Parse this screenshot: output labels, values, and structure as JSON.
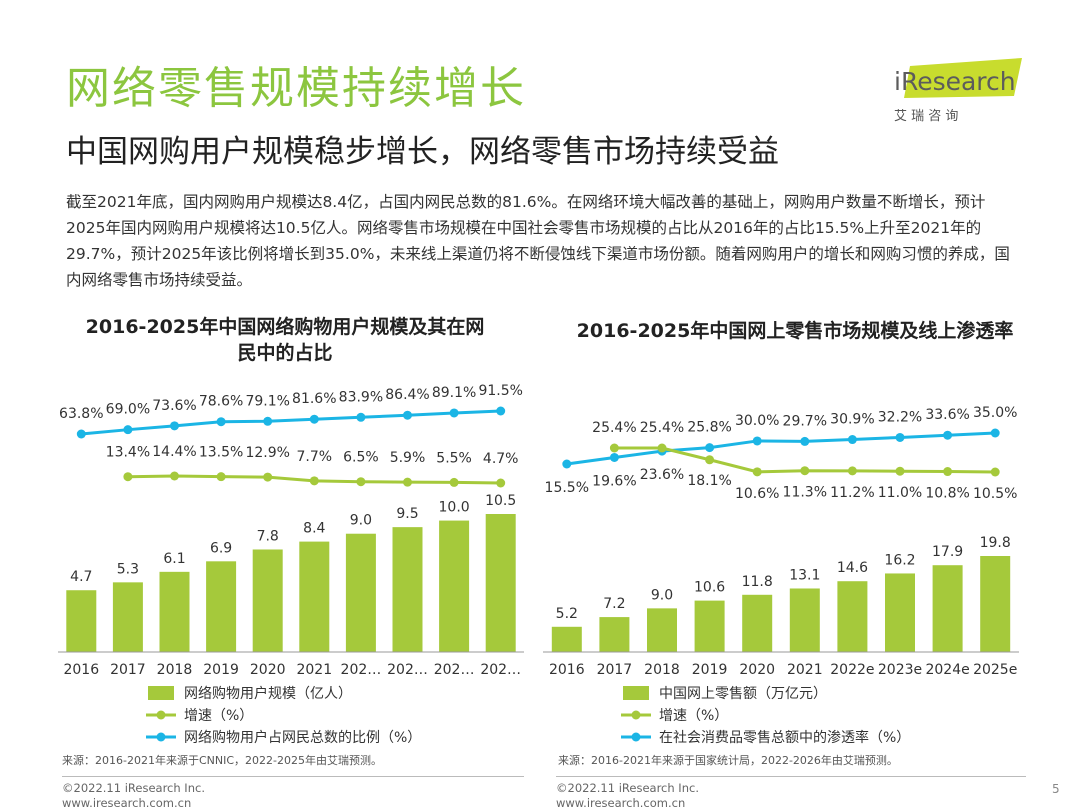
{
  "header": {
    "title": "网络零售规模持续增长",
    "subtitle": "中国网购用户规模稳步增长，网络零售市场持续受益",
    "logo_text": "iResearch",
    "logo_sub": "艾 瑞 咨 询"
  },
  "body_text": "截至2021年底，国内网购用户规模达8.4亿，占国内网民总数的81.6%。在网络环境大幅改善的基础上，网购用户数量不断增长，预计2025年国内网购用户规模将达10.5亿人。网络零售市场规模在中国社会零售市场规模的占比从2016年的占比15.5%上升至2021年的29.7%，预计2025年该比例将增长到35.0%，未来线上渠道仍将不断侵蚀线下渠道市场份额。随着网购用户的增长和网购习惯的养成，国内网络零售市场持续受益。",
  "colors": {
    "accent": "#8CC63F",
    "bar": "#A5C93B",
    "line_growth": "#A5C93B",
    "line_ratio": "#1BB5E5"
  },
  "chart_data": [
    {
      "type": "bar",
      "title": "2016-2025年中国网络购物用户规模及其在网民中的占比",
      "title_line1": "2016-2025年中国网络购物用户规模及其在网",
      "title_line2": "民中的占比",
      "categories": [
        "2016",
        "2017",
        "2018",
        "2019",
        "2020",
        "2021",
        "202…",
        "202…",
        "202…",
        "202…"
      ],
      "series": [
        {
          "name": "网络购物用户规模（亿人）",
          "type": "bar",
          "values": [
            4.7,
            5.3,
            6.1,
            6.9,
            7.8,
            8.4,
            9.0,
            9.5,
            10.0,
            10.5
          ],
          "labels": [
            "4.7",
            "5.3",
            "6.1",
            "6.9",
            "7.8",
            "8.4",
            "9.0",
            "9.5",
            "10.0",
            "10.5"
          ]
        },
        {
          "name": "增速（%）",
          "type": "line",
          "values": [
            null,
            13.4,
            14.4,
            13.5,
            12.9,
            7.7,
            6.5,
            5.9,
            5.5,
            4.7
          ],
          "labels": [
            "",
            "13.4%",
            "14.4%",
            "13.5%",
            "12.9%",
            "7.7%",
            "6.5%",
            "5.9%",
            "5.5%",
            "4.7%"
          ]
        },
        {
          "name": "网络购物用户占网民总数的比例（%）",
          "type": "line",
          "values": [
            63.8,
            69.0,
            73.6,
            78.6,
            79.1,
            81.6,
            83.9,
            86.4,
            89.1,
            91.5
          ],
          "labels": [
            "63.8%",
            "69.0%",
            "73.6%",
            "78.6%",
            "79.1%",
            "81.6%",
            "83.9%",
            "86.4%",
            "89.1%",
            "91.5%"
          ]
        }
      ],
      "source": "来源：2016-2021年来源于CNNIC，2022-2025年由艾瑞预测。"
    },
    {
      "type": "bar",
      "title": "2016-2025年中国网上零售市场规模及线上渗透率",
      "categories": [
        "2016",
        "2017",
        "2018",
        "2019",
        "2020",
        "2021",
        "2022e",
        "2023e",
        "2024e",
        "2025e"
      ],
      "series": [
        {
          "name": "中国网上零售额（万亿元）",
          "type": "bar",
          "values": [
            5.2,
            7.2,
            9.0,
            10.6,
            11.8,
            13.1,
            14.6,
            16.2,
            17.9,
            19.8
          ],
          "labels": [
            "5.2",
            "7.2",
            "9.0",
            "10.6",
            "11.8",
            "13.1",
            "14.6",
            "16.2",
            "17.9",
            "19.8"
          ]
        },
        {
          "name": "增速（%）",
          "type": "line",
          "values": [
            null,
            25.4,
            25.4,
            18.1,
            10.6,
            11.3,
            11.2,
            11.0,
            10.8,
            10.5
          ],
          "labels": [
            "",
            "25.4%",
            "25.4%",
            "18.1%",
            "10.6%",
            "11.3%",
            "11.2%",
            "11.0%",
            "10.8%",
            "10.5%"
          ]
        },
        {
          "name": "在社会消费品零售总额中的渗透率（%）",
          "type": "line",
          "values": [
            15.5,
            19.6,
            23.6,
            25.8,
            30.0,
            29.7,
            30.9,
            32.2,
            33.6,
            35.0
          ],
          "labels": [
            "15.5%",
            "19.6%",
            "23.6%",
            "25.8%",
            "30.0%",
            "29.7%",
            "30.9%",
            "32.2%",
            "33.6%",
            "35.0%"
          ]
        }
      ],
      "source": "来源：2016-2021年来源于国家统计局，2022-2026年由艾瑞预测。"
    }
  ],
  "footer": {
    "copyright": "©2022.11 iResearch Inc.",
    "url": "www.iresearch.com.cn",
    "page": "5"
  }
}
